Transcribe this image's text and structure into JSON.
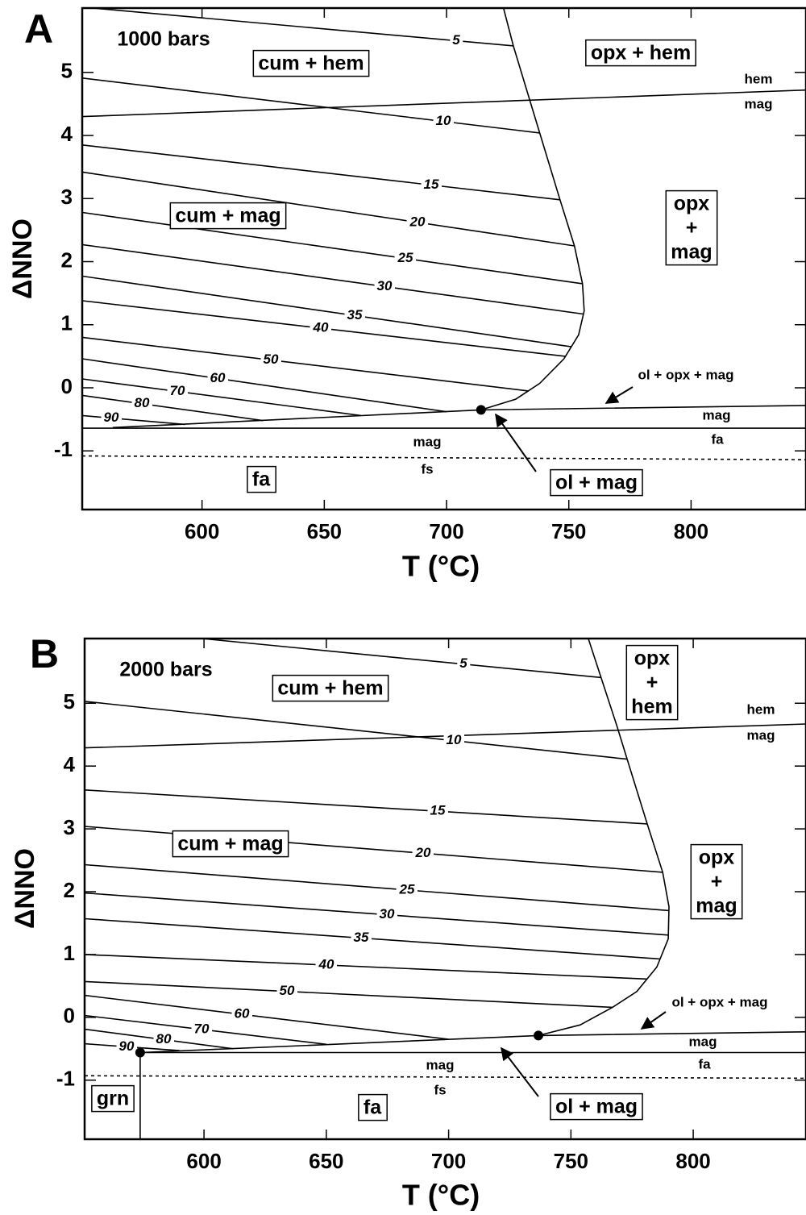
{
  "chart_data": [
    {
      "type": "line",
      "panel": "A",
      "pressure": "1000 bars",
      "xlabel": "T (°C)",
      "ylabel": "ΔNNO",
      "xlim": [
        551,
        847
      ],
      "ylim": [
        -1.93,
        6.02
      ],
      "xticks": [
        600,
        650,
        700,
        750,
        800
      ],
      "yticks": [
        -1,
        0,
        1,
        2,
        3,
        4,
        5
      ],
      "color": "#000000",
      "series": [
        {
          "name": "5",
          "x": [
            555.3,
            727.3
          ],
          "y": [
            6.02,
            5.42
          ]
        },
        {
          "name": "10",
          "x": [
            551,
            738.1
          ],
          "y": [
            4.91,
            4.04
          ]
        },
        {
          "name": "15",
          "x": [
            551,
            746.4
          ],
          "y": [
            3.85,
            2.98
          ]
        },
        {
          "name": "20",
          "x": [
            551,
            752.3
          ],
          "y": [
            3.42,
            2.25
          ]
        },
        {
          "name": "25",
          "x": [
            551,
            755.6
          ],
          "y": [
            2.78,
            1.65
          ]
        },
        {
          "name": "30",
          "x": [
            551,
            755.9
          ],
          "y": [
            2.27,
            1.17
          ]
        },
        {
          "name": "35",
          "x": [
            551,
            751
          ],
          "y": [
            1.77,
            0.65
          ]
        },
        {
          "name": "40",
          "x": [
            551,
            748.5
          ],
          "y": [
            1.38,
            0.5
          ]
        },
        {
          "name": "50",
          "x": [
            551,
            733.4
          ],
          "y": [
            0.8,
            -0.05
          ]
        },
        {
          "name": "60",
          "x": [
            551,
            700
          ],
          "y": [
            0.46,
            -0.38
          ]
        },
        {
          "name": "70",
          "x": [
            551,
            665
          ],
          "y": [
            0.14,
            -0.44
          ]
        },
        {
          "name": "80",
          "x": [
            551,
            625
          ],
          "y": [
            -0.12,
            -0.52
          ]
        },
        {
          "name": "90",
          "x": [
            551,
            593
          ],
          "y": [
            -0.44,
            -0.58
          ]
        },
        {
          "x": [
            723.3,
            727.3,
            738.1,
            746.4,
            752.3,
            755.6,
            756.3,
            754.0,
            748.0,
            738.1,
            728.3,
            714.1
          ],
          "y": [
            6.02,
            5.42,
            4.04,
            2.98,
            2.25,
            1.65,
            1.22,
            0.84,
            0.46,
            0.07,
            -0.18,
            -0.35
          ]
        },
        {
          "x": [
            551,
            846.9
          ],
          "y": [
            4.3,
            4.72
          ]
        },
        {
          "x": [
            563.5,
            714.1,
            846.9
          ],
          "y": [
            -0.63,
            -0.35,
            -0.28
          ]
        },
        {
          "x": [
            551,
            846.9
          ],
          "y": [
            -0.64,
            -0.64
          ]
        },
        {
          "x": [
            551,
            846.9
          ],
          "y": [
            -1.08,
            -1.14
          ],
          "style": "dashed"
        }
      ],
      "points": {
        "x": [
          714.1
        ],
        "y": [
          -0.35
        ]
      },
      "annotations": [
        {
          "text": "cum + hem",
          "boxed": true
        },
        {
          "text": "opx + hem",
          "boxed": true
        },
        {
          "text": "cum + mag",
          "boxed": true
        },
        {
          "lines": [
            "opx",
            "+",
            "mag"
          ],
          "boxed": true
        },
        {
          "text": "fa",
          "boxed": true
        },
        {
          "text": "ol + mag",
          "boxed": true
        },
        {
          "text": "hem",
          "boxed": false
        },
        {
          "text": "mag",
          "boxed": false
        },
        {
          "text": "ol + opx + mag",
          "boxed": false
        },
        {
          "text": "mag",
          "boxed": false
        },
        {
          "text": "fa",
          "boxed": false
        },
        {
          "text": "mag",
          "boxed": false
        },
        {
          "text": "fs",
          "boxed": false
        }
      ]
    },
    {
      "type": "line",
      "panel": "B",
      "pressure": "2000 bars",
      "xlabel": "T (°C)",
      "ylabel": "ΔNNO",
      "xlim": [
        551.2,
        846.1
      ],
      "ylim": [
        -1.94,
        6.03
      ],
      "xticks": [
        600,
        650,
        700,
        750,
        800
      ],
      "yticks": [
        -1,
        0,
        1,
        2,
        3,
        4,
        5
      ],
      "color": "#000000",
      "series": [
        {
          "name": "5",
          "x": [
            599.0,
            762.1
          ],
          "y": [
            6.03,
            5.41
          ]
        },
        {
          "name": "10",
          "x": [
            551.2,
            773.0
          ],
          "y": [
            5.03,
            4.11
          ]
        },
        {
          "name": "15",
          "x": [
            551.2,
            781.2
          ],
          "y": [
            3.62,
            3.08
          ]
        },
        {
          "name": "20",
          "x": [
            551.2,
            787.5
          ],
          "y": [
            3.04,
            2.31
          ]
        },
        {
          "name": "25",
          "x": [
            551.2,
            790.1
          ],
          "y": [
            2.43,
            1.7
          ]
        },
        {
          "name": "30",
          "x": [
            551.2,
            789.9
          ],
          "y": [
            1.98,
            1.31
          ]
        },
        {
          "name": "35",
          "x": [
            551.2,
            786.5
          ],
          "y": [
            1.57,
            0.93
          ]
        },
        {
          "name": "40",
          "x": [
            551.2,
            781
          ],
          "y": [
            1.0,
            0.61
          ]
        },
        {
          "name": "50",
          "x": [
            551.2,
            767
          ],
          "y": [
            0.57,
            0.16
          ]
        },
        {
          "name": "60",
          "x": [
            551.2,
            700
          ],
          "y": [
            0.35,
            -0.35
          ]
        },
        {
          "name": "70",
          "x": [
            551.2,
            650
          ],
          "y": [
            0.03,
            -0.43
          ]
        },
        {
          "name": "80",
          "x": [
            551.2,
            612
          ],
          "y": [
            -0.19,
            -0.5
          ]
        },
        {
          "name": "90",
          "x": [
            551.2,
            590
          ],
          "y": [
            -0.42,
            -0.53
          ]
        },
        {
          "x": [
            757.1,
            768.7,
            773.0,
            781.2,
            787.5,
            790.1,
            789.8,
            785.1,
            776.9,
            767.0,
            753.8,
            736.7
          ],
          "y": [
            6.03,
            4.65,
            4.11,
            3.08,
            2.31,
            1.76,
            1.25,
            0.8,
            0.41,
            0.16,
            -0.12,
            -0.29
          ]
        },
        {
          "x": [
            551.2,
            846.1
          ],
          "y": [
            4.29,
            4.67
          ]
        },
        {
          "x": [
            573.9,
            736.7,
            846.1
          ],
          "y": [
            -0.56,
            -0.29,
            -0.23
          ]
        },
        {
          "x": [
            573.9,
            846.1
          ],
          "y": [
            -0.56,
            -0.56
          ]
        },
        {
          "x": [
            573.9,
            573.9
          ],
          "y": [
            -0.56,
            -1.94
          ]
        },
        {
          "x": [
            551.2,
            846.1
          ],
          "y": [
            -0.93,
            -0.97
          ],
          "style": "dashed"
        }
      ],
      "points": {
        "x": [
          573.9,
          736.7
        ],
        "y": [
          -0.56,
          -0.29
        ]
      },
      "annotations": [
        {
          "text": "cum + hem",
          "boxed": true
        },
        {
          "lines": [
            "opx",
            "+",
            "hem"
          ],
          "boxed": true
        },
        {
          "text": "cum + mag",
          "boxed": true
        },
        {
          "lines": [
            "opx",
            "+",
            "mag"
          ],
          "boxed": true
        },
        {
          "text": "grn",
          "boxed": true
        },
        {
          "text": "fa",
          "boxed": true
        },
        {
          "text": "ol + mag",
          "boxed": true
        },
        {
          "text": "hem",
          "boxed": false
        },
        {
          "text": "mag",
          "boxed": false
        },
        {
          "text": "ol + opx + mag",
          "boxed": false
        },
        {
          "text": "mag",
          "boxed": false
        },
        {
          "text": "fa",
          "boxed": false
        },
        {
          "text": "mag",
          "boxed": false
        },
        {
          "text": "fs",
          "boxed": false
        }
      ]
    }
  ]
}
